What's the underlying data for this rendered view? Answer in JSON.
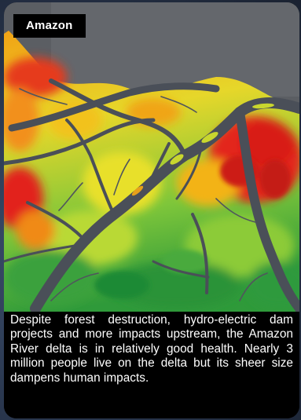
{
  "label": "Amazon",
  "caption": "Despite forest destruction, hydro-electric dam projects and more impacts upstream, the Amazon River delta is in relatively good health. Nearly 3 million people live on the delta but its sheer size dampens human impacts.",
  "map_colors": {
    "ocean": "#5b5e63",
    "water": "#4a4f58",
    "healthy": "#2e9a3c",
    "moderate": "#d6df2b",
    "stressed": "#f0a014",
    "degraded": "#e0261a"
  }
}
